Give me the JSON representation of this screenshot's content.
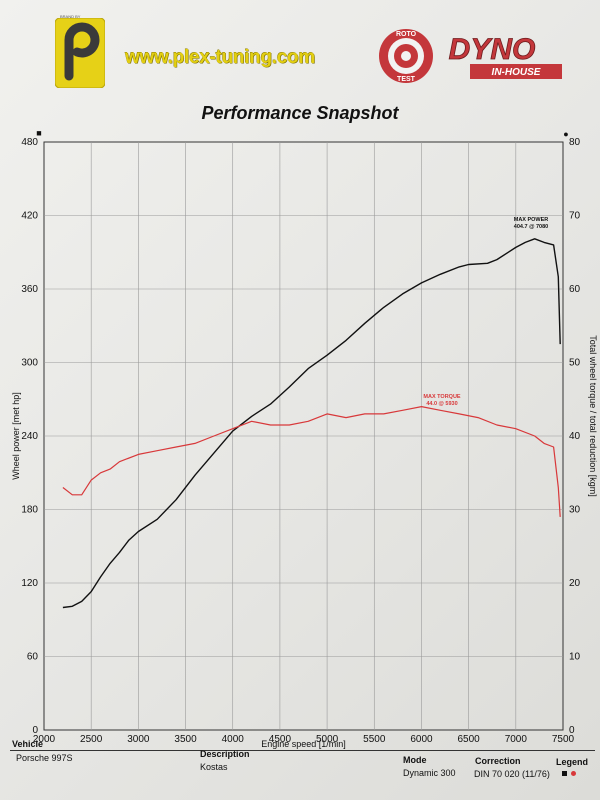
{
  "header": {
    "small_text": "BRAND BY",
    "logo_letter": "P",
    "website": "www.plex-tuning.com",
    "dyno_logo": {
      "ring_top": "ROTO",
      "ring_bottom": "TEST",
      "word": "DYNO",
      "sub": "IN-HOUSE"
    },
    "title": "Performance Snapshot"
  },
  "chart_data": {
    "type": "line",
    "xlabel": "Engine speed [1/min]",
    "ylabel": "Wheel power [met hp]",
    "y2label": "Total wheel torque / total reduction [kgm]",
    "xlim": [
      2000,
      7500
    ],
    "ylim": [
      0,
      480
    ],
    "y2lim": [
      0,
      80
    ],
    "x_ticks": [
      "2000",
      "2500",
      "3000",
      "3500",
      "4000",
      "4500",
      "5000",
      "5500",
      "6000",
      "6500",
      "7000",
      "7500"
    ],
    "y_ticks": [
      "0",
      "60",
      "120",
      "180",
      "240",
      "300",
      "360",
      "420",
      "480"
    ],
    "y2_ticks": [
      "0",
      "10",
      "20",
      "30",
      "40",
      "50",
      "60",
      "70",
      "80"
    ],
    "grid": true,
    "series": [
      {
        "axis": "left",
        "color": "#111111",
        "x": [
          2200,
          2300,
          2400,
          2500,
          2600,
          2700,
          2800,
          2900,
          3000,
          3200,
          3400,
          3600,
          3800,
          4000,
          4200,
          4400,
          4600,
          4800,
          5000,
          5200,
          5400,
          5600,
          5800,
          6000,
          6200,
          6400,
          6500,
          6700,
          6800,
          7000,
          7100,
          7200,
          7300,
          7400,
          7450,
          7470
        ],
        "values": [
          100,
          101,
          105,
          113,
          125,
          136,
          145,
          155,
          162,
          172,
          188,
          208,
          226,
          244,
          256,
          266,
          280,
          295,
          306,
          318,
          332,
          345,
          356,
          365,
          372,
          378,
          380,
          381,
          384,
          394,
          398,
          401,
          398,
          396,
          370,
          315
        ]
      },
      {
        "axis": "right",
        "color": "#d8383a",
        "x": [
          2200,
          2300,
          2400,
          2500,
          2600,
          2700,
          2800,
          3000,
          3200,
          3400,
          3600,
          3800,
          4000,
          4200,
          4400,
          4600,
          4800,
          5000,
          5200,
          5400,
          5600,
          5800,
          6000,
          6200,
          6400,
          6600,
          6800,
          7000,
          7200,
          7300,
          7400,
          7450,
          7470
        ],
        "values": [
          33,
          32,
          32,
          34,
          35,
          35.5,
          36.5,
          37.5,
          38,
          38.5,
          39,
          40,
          41,
          42,
          41.5,
          41.5,
          42,
          43,
          42.5,
          43,
          43,
          43.5,
          44,
          43.5,
          43,
          42.5,
          41.5,
          41,
          40,
          39,
          38.5,
          33,
          29
        ]
      }
    ],
    "annotations": [
      {
        "text": "MAX POWER",
        "value": "404.7 @ 7080"
      },
      {
        "text": "MAX TORQUE",
        "value": "44.0 @ 5930"
      }
    ],
    "axis_markers": {
      "left": "■",
      "right": "●"
    }
  },
  "footer": {
    "vehicle_label": "Vehicle",
    "vehicle_value": "Porsche 997S",
    "description_label": "Description",
    "description_value": "Kostas",
    "mode_label": "Mode",
    "mode_value": "Dynamic 300",
    "correction_label": "Correction",
    "correction_value": "DIN 70 020 (11/76)",
    "legend_label": "Legend"
  }
}
